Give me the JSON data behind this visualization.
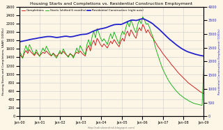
{
  "title": "Housing Starts and Completions vs. Residential Construction Employment",
  "subtitle": "http://calculatedrisk.blogspot.com/",
  "legend_labels": [
    "Completions",
    "Starts (shifted 6 months)",
    "Residential Construction (right axis)"
  ],
  "completions_color": "#cc0000",
  "starts_color": "#00aa00",
  "employment_color": "#2222cc",
  "x_tick_labels": [
    "Jan-00",
    "Jan-01",
    "Jan-02",
    "Jan-03",
    "Jan-04",
    "Jan-05",
    "Jan-06",
    "Jan-07",
    "Jan-08",
    "Jan-09"
  ],
  "ylabel_left": "Housing Starts and Completions, SAAR (1000s)",
  "ylabel_right": "Residential Construction Employment (1000s)",
  "ylim_left": [
    0,
    2600
  ],
  "ylim_right": [
    0,
    4000
  ],
  "yticks_left": [
    0,
    200,
    400,
    600,
    800,
    1000,
    1200,
    1400,
    1600,
    1800,
    2000,
    2200,
    2400,
    2600
  ],
  "yticks_right": [
    0,
    500,
    1000,
    1500,
    2000,
    2500,
    3000,
    3500,
    4000
  ],
  "bg_color": "#fdf5e6",
  "grid_color": "#cccccc",
  "completions_data": [
    1490,
    1430,
    1380,
    1500,
    1560,
    1490,
    1580,
    1520,
    1480,
    1440,
    1520,
    1470,
    1430,
    1480,
    1520,
    1490,
    1550,
    1500,
    1460,
    1430,
    1500,
    1460,
    1420,
    1470,
    1510,
    1480,
    1540,
    1490,
    1450,
    1420,
    1490,
    1460,
    1420,
    1480,
    1520,
    1490,
    1550,
    1500,
    1460,
    1430,
    1600,
    1680,
    1550,
    1720,
    1800,
    1680,
    1850,
    1780,
    1700,
    1650,
    1720,
    1670,
    1620,
    1700,
    1780,
    1720,
    1820,
    1760,
    1700,
    1650,
    1780,
    1850,
    1780,
    1950,
    2020,
    1900,
    2050,
    1980,
    1900,
    1850,
    2020,
    2100,
    2030,
    2180,
    2100,
    1980,
    2050,
    1980,
    1900,
    1850,
    1780,
    1720,
    1650,
    1600,
    1540,
    1480,
    1430,
    1380,
    1330,
    1280,
    1220,
    1180,
    1130,
    1080,
    1030,
    990,
    950,
    910,
    870,
    830,
    790,
    760,
    730,
    700,
    670,
    640,
    610,
    580,
    560,
    540
  ],
  "starts_data": [
    1550,
    1480,
    1380,
    1560,
    1680,
    1540,
    1700,
    1620,
    1520,
    1460,
    1580,
    1500,
    1420,
    1530,
    1620,
    1540,
    1660,
    1580,
    1500,
    1440,
    1480,
    1430,
    1380,
    1460,
    1560,
    1480,
    1600,
    1520,
    1450,
    1400,
    1480,
    1450,
    1380,
    1500,
    1620,
    1520,
    1680,
    1600,
    1520,
    1460,
    1700,
    1820,
    1660,
    1880,
    2020,
    1860,
    2080,
    1980,
    1860,
    1780,
    1840,
    1780,
    1700,
    1840,
    1960,
    1840,
    2000,
    1900,
    1800,
    1720,
    1900,
    2020,
    1940,
    2100,
    2240,
    2120,
    2280,
    2180,
    2060,
    1980,
    2180,
    2280,
    2200,
    2360,
    2280,
    2180,
    2200,
    2100,
    1980,
    1880,
    1700,
    1560,
    1440,
    1320,
    1200,
    1100,
    1020,
    940,
    860,
    800,
    740,
    690,
    640,
    590,
    550,
    510,
    480,
    450,
    420,
    400,
    370,
    350,
    330,
    310,
    300,
    290,
    280,
    270,
    260,
    1200
  ],
  "employment_data": [
    2720,
    2730,
    2740,
    2755,
    2765,
    2780,
    2795,
    2810,
    2820,
    2830,
    2840,
    2855,
    2865,
    2875,
    2885,
    2895,
    2905,
    2910,
    2910,
    2905,
    2895,
    2885,
    2875,
    2880,
    2890,
    2900,
    2910,
    2920,
    2920,
    2910,
    2900,
    2905,
    2915,
    2930,
    2945,
    2960,
    2975,
    2985,
    2990,
    2995,
    3005,
    3025,
    3055,
    3085,
    3110,
    3135,
    3155,
    3175,
    3190,
    3200,
    3215,
    3230,
    3250,
    3275,
    3300,
    3320,
    3340,
    3350,
    3355,
    3355,
    3350,
    3370,
    3400,
    3425,
    3455,
    3480,
    3505,
    3510,
    3505,
    3495,
    3510,
    3530,
    3550,
    3560,
    3540,
    3510,
    3480,
    3445,
    3410,
    3370,
    3310,
    3260,
    3210,
    3155,
    3095,
    3035,
    2975,
    2915,
    2855,
    2800,
    2750,
    2700,
    2650,
    2600,
    2555,
    2510,
    2470,
    2435,
    2400,
    2370,
    2345,
    2325,
    2305,
    2285,
    2265,
    2250,
    2235,
    2220,
    2210,
    2200
  ],
  "n_points": 110
}
